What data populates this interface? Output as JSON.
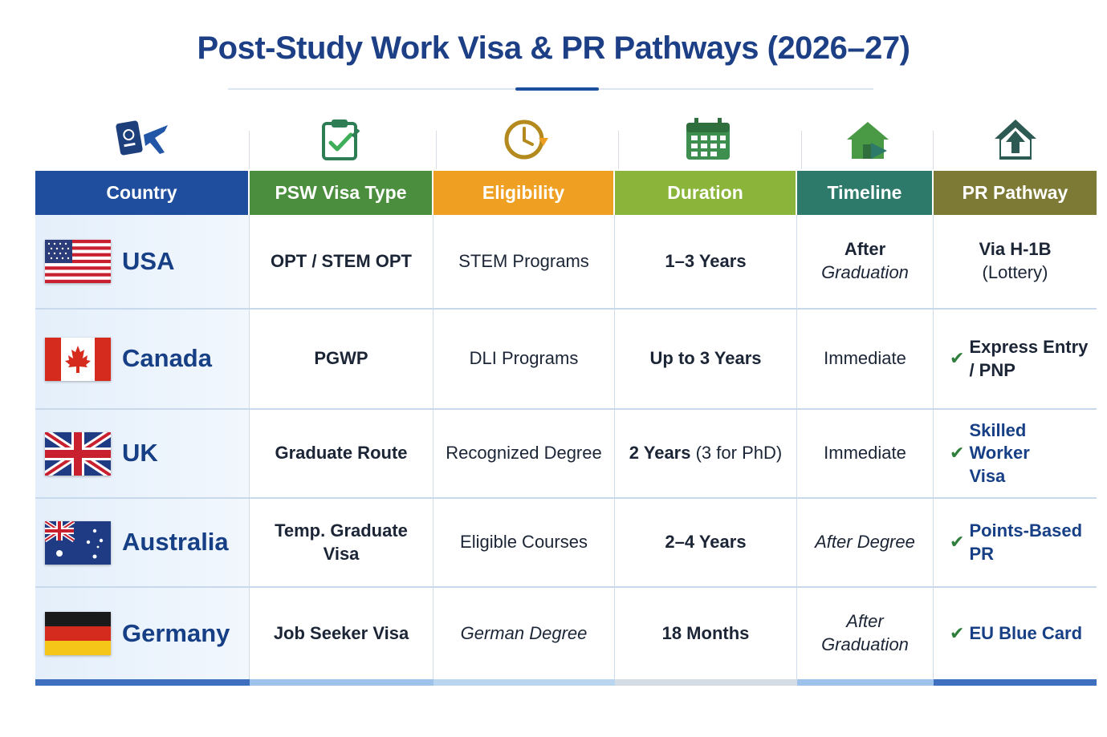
{
  "title": "Post-Study Work Visa & PR Pathways (2026–27)",
  "colors": {
    "title": "#1c3f86",
    "country_header": "#1f4e9e",
    "psw_header": "#4b8f3e",
    "eligibility_header": "#ef9f22",
    "duration_header": "#8ab43a",
    "timeline_header": "#2d7a6b",
    "pr_header": "#7d7a35",
    "check": "#2f7d3b"
  },
  "icons": [
    "passport-plane-icon",
    "clipboard-check-icon",
    "clock-icon",
    "calendar-icon",
    "house-icon",
    "house-arrow-icon"
  ],
  "headers": {
    "country": "Country",
    "psw": "PSW Visa Type",
    "eligibility": "Eligibility",
    "duration": "Duration",
    "timeline": "Timeline",
    "pr": "PR Pathway"
  },
  "rows": [
    {
      "country": "USA",
      "psw": "OPT / STEM OPT",
      "eligibility": "STEM Programs",
      "duration": "1–3 Years",
      "timeline_line1": "After",
      "timeline_line2": "Graduation",
      "pr_line1": "Via H-1B",
      "pr_line2": "(Lottery)"
    },
    {
      "country": "Canada",
      "psw": "PGWP",
      "eligibility": "DLI Programs",
      "duration": "Up to 3 Years",
      "timeline": "Immediate",
      "pr_line1": "Express Entry",
      "pr_line2": "/ PNP"
    },
    {
      "country": "UK",
      "psw": "Graduate Route",
      "eligibility": "Recognized Degree",
      "duration_main": "2 Years",
      "duration_note": "(3 for PhD)",
      "timeline": "Immediate",
      "pr_line1": "Skilled Worker",
      "pr_line2": "Visa"
    },
    {
      "country": "Australia",
      "psw": "Temp. Graduate Visa",
      "eligibility": "Eligible Courses",
      "duration": "2–4 Years",
      "timeline": "After Degree",
      "pr": "Points-Based PR"
    },
    {
      "country": "Germany",
      "psw": "Job Seeker Visa",
      "eligibility": "German Degree",
      "duration": "18 Months",
      "timeline": "After Graduation",
      "pr": "EU Blue Card"
    }
  ],
  "check_glyph": "✔"
}
